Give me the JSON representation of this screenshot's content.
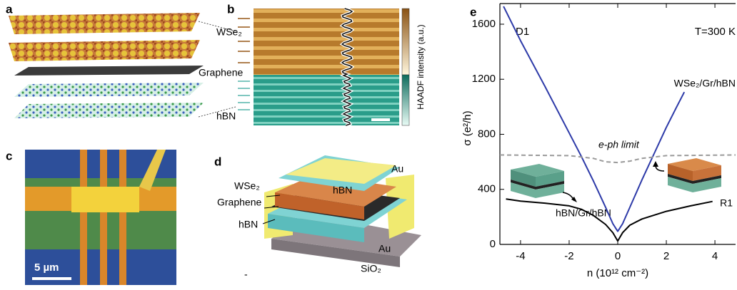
{
  "figure": {
    "panel_labels": [
      "a",
      "b",
      "c",
      "d",
      "e"
    ],
    "a": {
      "labels": [
        "WSe₂",
        "Graphene",
        "hBN"
      ]
    },
    "b": {
      "colorbar_label": "HAADF intensity (a.u.)"
    },
    "c": {
      "scale_bar": "5 µm"
    },
    "d": {
      "labels": [
        "Au",
        "hBN",
        "WSe₂",
        "Graphene",
        "hBN",
        "Au",
        "SiO₂"
      ]
    },
    "stray_mark": "-"
  },
  "chart_data": {
    "type": "line",
    "xlabel": "n (10¹² cm⁻²)",
    "ylabel": "σ (e²/h)",
    "annotations": [
      "D1",
      "T=300 K",
      "R1"
    ],
    "xlim": [
      -4.85,
      4.85
    ],
    "ylim": [
      0,
      1750
    ],
    "xticks": [
      -4,
      -2,
      0,
      2,
      4
    ],
    "yticks": [
      0,
      400,
      800,
      1200,
      1600
    ],
    "series": [
      {
        "name": "WSe₂/Gr/hBN",
        "color": "#2d3aa8",
        "x": [
          -4.7,
          -4,
          -3,
          -2,
          -1.5,
          -1,
          -0.5,
          -0.2,
          0,
          0.2,
          0.5,
          1,
          1.5,
          2,
          2.4,
          2.74
        ],
        "values": [
          1730,
          1480,
          1150,
          810,
          640,
          460,
          270,
          150,
          95,
          150,
          270,
          470,
          660,
          850,
          990,
          1107
        ]
      },
      {
        "name": "hBN/Gr/hBN",
        "color": "#000000",
        "x": [
          -4.6,
          -4,
          -3,
          -2,
          -1.5,
          -1,
          -0.5,
          -0.2,
          0,
          0.2,
          0.5,
          1,
          2,
          3,
          3.9
        ],
        "values": [
          330,
          315,
          300,
          280,
          255,
          210,
          145,
          85,
          25,
          85,
          140,
          185,
          240,
          280,
          312
        ]
      },
      {
        "name": "e-ph limit",
        "color": "#9a9a9a",
        "dash": true,
        "x": [
          -4.85,
          -2,
          -1,
          -0.5,
          0,
          0.5,
          1,
          2,
          4.85
        ],
        "values": [
          650,
          645,
          625,
          600,
          595,
          605,
          625,
          645,
          650
        ]
      }
    ]
  }
}
